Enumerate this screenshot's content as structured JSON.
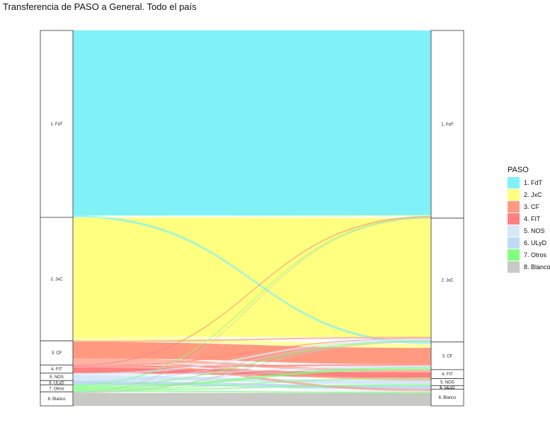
{
  "title": "Transferencia de PASO a General. Todo el país",
  "chart_data": {
    "type": "alluvial",
    "axes": [
      "PASO",
      "General"
    ],
    "legend_title": "PASO",
    "categories": [
      "1. FdT",
      "2. JxC",
      "3. CF",
      "4. FIT",
      "5. NOS",
      "6. ULyD",
      "7. Otros",
      "8. Blanco"
    ],
    "stratum_labels": [
      "1. FdT",
      "2. JxC",
      "3. CF",
      "4. FIT",
      "5. NOS",
      "6. ULyD",
      "7. Otros",
      "8. Blanco"
    ],
    "colors": [
      "#80F1F7",
      "#FFFF80",
      "#FF9A80",
      "#FF8080",
      "#D4E8F8",
      "#BFDAF5",
      "#80FF80",
      "#C8C8C4"
    ],
    "flows": [
      {
        "from": 0,
        "to": 0,
        "value": 47.5
      },
      {
        "from": 0,
        "to": 2,
        "value": 0.5
      },
      {
        "from": 1,
        "to": 1,
        "value": 30.5
      },
      {
        "from": 1,
        "to": 0,
        "value": 0.2
      },
      {
        "from": 1,
        "to": 2,
        "value": 1.0
      },
      {
        "from": 2,
        "to": 2,
        "value": 4.2
      },
      {
        "from": 2,
        "to": 1,
        "value": 0.3
      },
      {
        "from": 2,
        "to": 3,
        "value": 0.7
      },
      {
        "from": 2,
        "to": 4,
        "value": 0.5
      },
      {
        "from": 2,
        "to": 7,
        "value": 0.5
      },
      {
        "from": 3,
        "to": 3,
        "value": 1.4
      },
      {
        "from": 3,
        "to": 0,
        "value": 0.2
      },
      {
        "from": 3,
        "to": 2,
        "value": 0.4
      },
      {
        "from": 3,
        "to": 1,
        "value": 0.1
      },
      {
        "from": 4,
        "to": 4,
        "value": 1.0
      },
      {
        "from": 4,
        "to": 1,
        "value": 0.4
      },
      {
        "from": 4,
        "to": 2,
        "value": 0.3
      },
      {
        "from": 4,
        "to": 7,
        "value": 0.2
      },
      {
        "from": 5,
        "to": 5,
        "value": 0.9
      },
      {
        "from": 5,
        "to": 1,
        "value": 0.1
      },
      {
        "from": 5,
        "to": 2,
        "value": 0.1
      },
      {
        "from": 6,
        "to": 0,
        "value": 0.2
      },
      {
        "from": 6,
        "to": 1,
        "value": 0.2
      },
      {
        "from": 6,
        "to": 2,
        "value": 0.6
      },
      {
        "from": 6,
        "to": 3,
        "value": 0.2
      },
      {
        "from": 6,
        "to": 4,
        "value": 0.3
      },
      {
        "from": 6,
        "to": 7,
        "value": 0.3
      },
      {
        "from": 7,
        "to": 7,
        "value": 3.3
      },
      {
        "from": 7,
        "to": 1,
        "value": 0.2
      },
      {
        "from": 7,
        "to": 0,
        "value": 0.1
      }
    ]
  }
}
